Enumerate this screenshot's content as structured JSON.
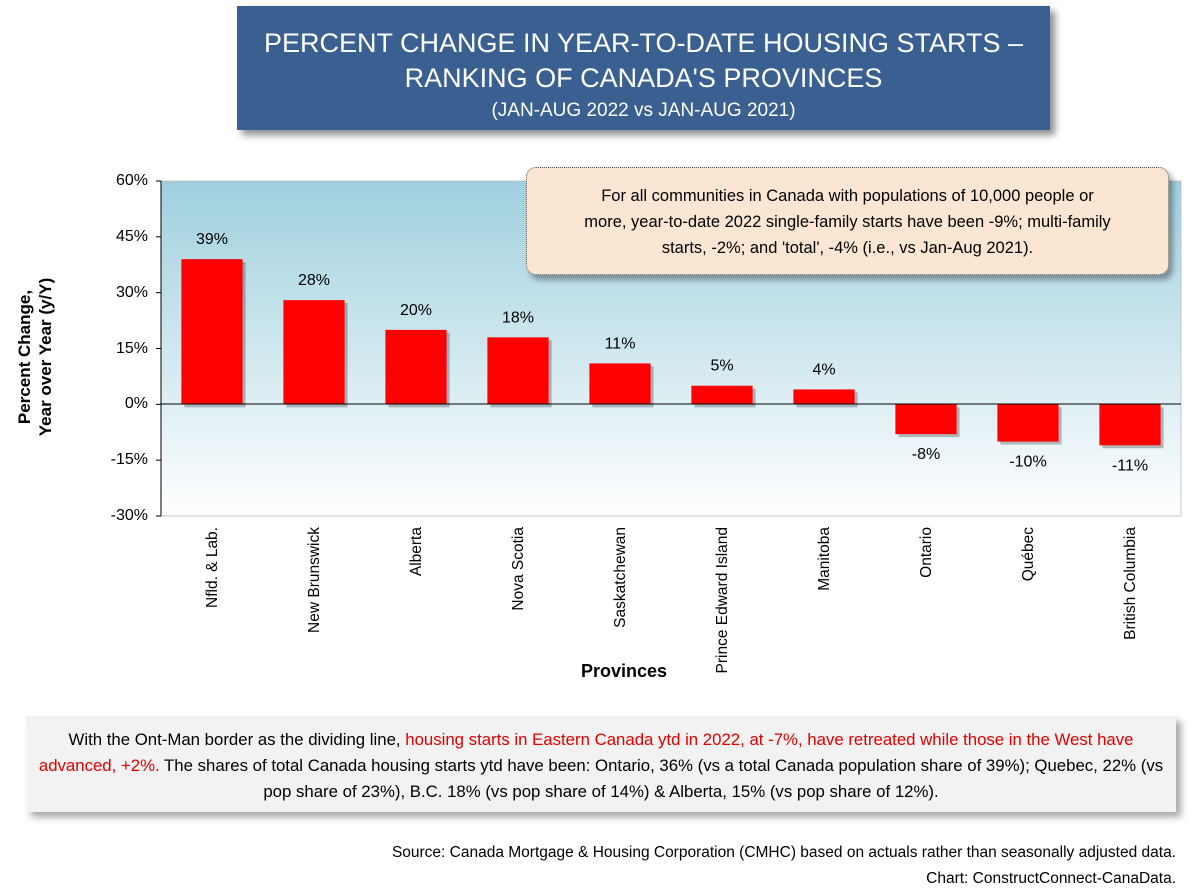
{
  "title": {
    "line1": "PERCENT CHANGE IN YEAR-TO-DATE HOUSING STARTS –",
    "line2": "RANKING OF CANADA'S PROVINCES",
    "subtitle": "(JAN-AUG 2022 vs JAN-AUG 2021)"
  },
  "note": {
    "line1": "For all communities in Canada with populations of 10,000 people or",
    "line2": "more, year-to-date 2022 single-family starts have been -9%; multi-family",
    "line3": "starts, -2%; and 'total', -4% (i.e., vs Jan-Aug 2021)."
  },
  "bottom_text": {
    "part1": "With the Ont-Man border as the dividing line, ",
    "part2_red": "housing starts in Eastern Canada ytd in 2022, at -7%, have retreated while those in the West have advanced, +2%.",
    "part3": " The shares of total Canada housing starts ytd have been: Ontario, 36% (vs a total Canada population share of 39%); Quebec, 22% (vs pop share of 23%), B.C. 18% (vs pop share of 14%) & Alberta, 15% (vs pop share of 12%)."
  },
  "source": {
    "line1": "Source: Canada Mortgage & Housing Corporation (CMHC) based on actuals rather than seasonally adjusted data.",
    "line2": "Chart: ConstructConnect-CanaData."
  },
  "colors": {
    "title_bg": "#3a5f91",
    "bar": "#ff0000",
    "plot_gradient_top": "#9fd0de",
    "plot_gradient_bottom": "#ffffff",
    "note_bg": "#fbe5d3",
    "highlight_text": "#e00000"
  },
  "chart_data": {
    "type": "bar",
    "categories": [
      "Nfld. & Lab.",
      "New Brunswick",
      "Alberta",
      "Nova Scotia",
      "Saskatchewan",
      "Prince Edward Island",
      "Manitoba",
      "Ontario",
      "Québec",
      "British Columbia"
    ],
    "values": [
      39,
      28,
      20,
      18,
      11,
      5,
      4,
      -8,
      -10,
      -11
    ],
    "data_labels": [
      "39%",
      "28%",
      "20%",
      "18%",
      "11%",
      "5%",
      "4%",
      "-8%",
      "-10%",
      "-11%"
    ],
    "xlabel": "Provinces",
    "ylabel_line1": "Percent Change,",
    "ylabel_line2": "Year over Year (y/Y)",
    "ylim": [
      -30,
      60
    ],
    "yticks": [
      "60%",
      "45%",
      "30%",
      "15%",
      "0%",
      "-15%",
      "-30%"
    ],
    "grid": false,
    "legend": "none"
  }
}
